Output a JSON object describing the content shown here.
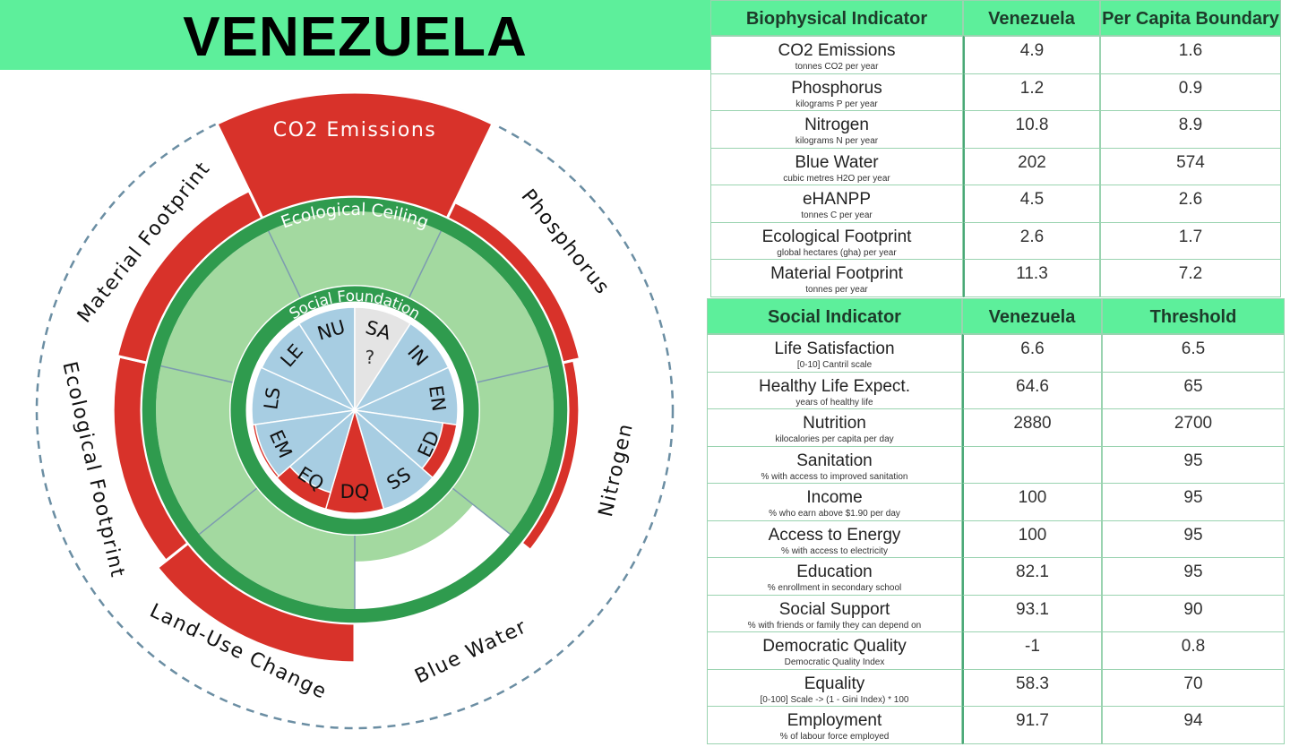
{
  "title": "VENEZUELA",
  "diagram": {
    "ecological_ceiling_label": "Ecological Ceiling",
    "social_foundation_label": "Social Foundation",
    "ecological_labels": [
      "CO2 Emissions",
      "Phosphorus",
      "Nitrogen",
      "Blue Water",
      "Land-Use Change",
      "Ecological Footprint",
      "Material Footprint"
    ],
    "social_labels": [
      "LS",
      "LE",
      "NU",
      "SA",
      "IN",
      "EN",
      "ED",
      "SS",
      "DQ",
      "EQ",
      "EM"
    ],
    "missing_mark": "?"
  },
  "biophysical_table": {
    "headers": [
      "Biophysical Indicator",
      "Venezuela",
      "Per Capita Boundary"
    ],
    "rows": [
      {
        "name": "CO2 Emissions",
        "unit": "tonnes CO2 per year",
        "value": 4.9,
        "boundary": 1.6
      },
      {
        "name": "Phosphorus",
        "unit": "kilograms P per year",
        "value": 1.2,
        "boundary": 0.9
      },
      {
        "name": "Nitrogen",
        "unit": "kilograms N per year",
        "value": 10.8,
        "boundary": 8.9
      },
      {
        "name": "Blue Water",
        "unit": "cubic metres H2O per year",
        "value": 202,
        "boundary": 574
      },
      {
        "name": "eHANPP",
        "unit": "tonnes C per year",
        "value": 4.5,
        "boundary": 2.6
      },
      {
        "name": "Ecological Footprint",
        "unit": "global hectares (gha) per year",
        "value": 2.6,
        "boundary": 1.7
      },
      {
        "name": "Material Footprint",
        "unit": "tonnes per year",
        "value": 11.3,
        "boundary": 7.2
      }
    ]
  },
  "social_table": {
    "headers": [
      "Social Indicator",
      "Venezuela",
      "Threshold"
    ],
    "rows": [
      {
        "name": "Life Satisfaction",
        "unit": "[0-10] Cantril scale",
        "value": 6.6,
        "threshold": 6.5
      },
      {
        "name": "Healthy Life Expect.",
        "unit": "years of healthy life",
        "value": 64.6,
        "threshold": 65
      },
      {
        "name": "Nutrition",
        "unit": "kilocalories per capita per day",
        "value": 2880,
        "threshold": 2700
      },
      {
        "name": "Sanitation",
        "unit": "% with access to improved sanitation",
        "value": null,
        "threshold": 95
      },
      {
        "name": "Income",
        "unit": "% who earn above $1.90 per day",
        "value": 100,
        "threshold": 95
      },
      {
        "name": "Access to Energy",
        "unit": "% with access to electricity",
        "value": 100,
        "threshold": 95
      },
      {
        "name": "Education",
        "unit": "% enrollment in secondary school",
        "value": 82.1,
        "threshold": 95
      },
      {
        "name": "Social Support",
        "unit": "% with friends or family they can depend on",
        "value": 93.1,
        "threshold": 90
      },
      {
        "name": "Democratic Quality",
        "unit": "Democratic Quality Index",
        "value": -1,
        "threshold": 0.8
      },
      {
        "name": "Equality",
        "unit": "[0-100] Scale -> (1 - Gini Index) * 100",
        "value": 58.3,
        "threshold": 70
      },
      {
        "name": "Employment",
        "unit": "% of labour force employed",
        "value": 91.7,
        "threshold": 94
      }
    ]
  }
}
